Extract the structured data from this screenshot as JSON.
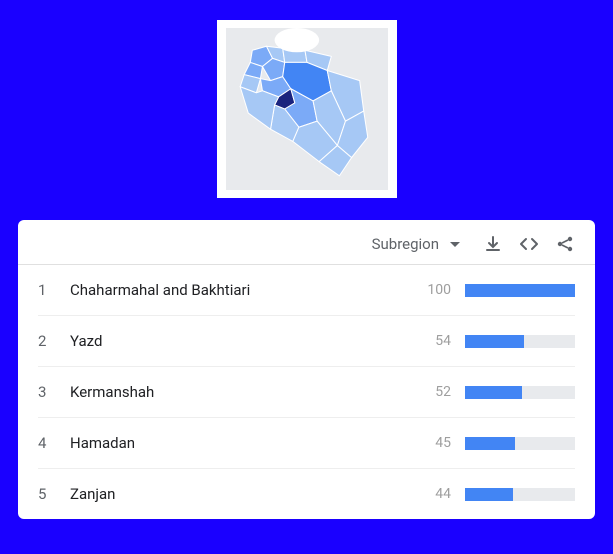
{
  "map": {
    "background_color": "#e8eaed",
    "base_fill": "#a6c8f5",
    "mid_fill": "#7baaf7",
    "high_fill": "#4285f4",
    "highest_fill": "#1a237e",
    "stroke": "#ffffff"
  },
  "toolbar": {
    "dropdown_label": "Subregion",
    "download_icon": "download-icon",
    "code_icon": "code-icon",
    "share_icon": "share-icon"
  },
  "table": {
    "bar_track_color": "#e8eaed",
    "bar_fill_color": "#4285f4",
    "rows": [
      {
        "rank": "1",
        "name": "Chaharmahal and Bakhtiari",
        "value": "100",
        "pct": 100
      },
      {
        "rank": "2",
        "name": "Yazd",
        "value": "54",
        "pct": 54
      },
      {
        "rank": "3",
        "name": "Kermanshah",
        "value": "52",
        "pct": 52
      },
      {
        "rank": "4",
        "name": "Hamadan",
        "value": "45",
        "pct": 45
      },
      {
        "rank": "5",
        "name": "Zanjan",
        "value": "44",
        "pct": 44
      }
    ]
  },
  "colors": {
    "page_bg": "#1a00ff",
    "panel_bg": "#ffffff",
    "text_primary": "#202124",
    "text_secondary": "#5f6368",
    "text_muted": "#9e9e9e"
  }
}
